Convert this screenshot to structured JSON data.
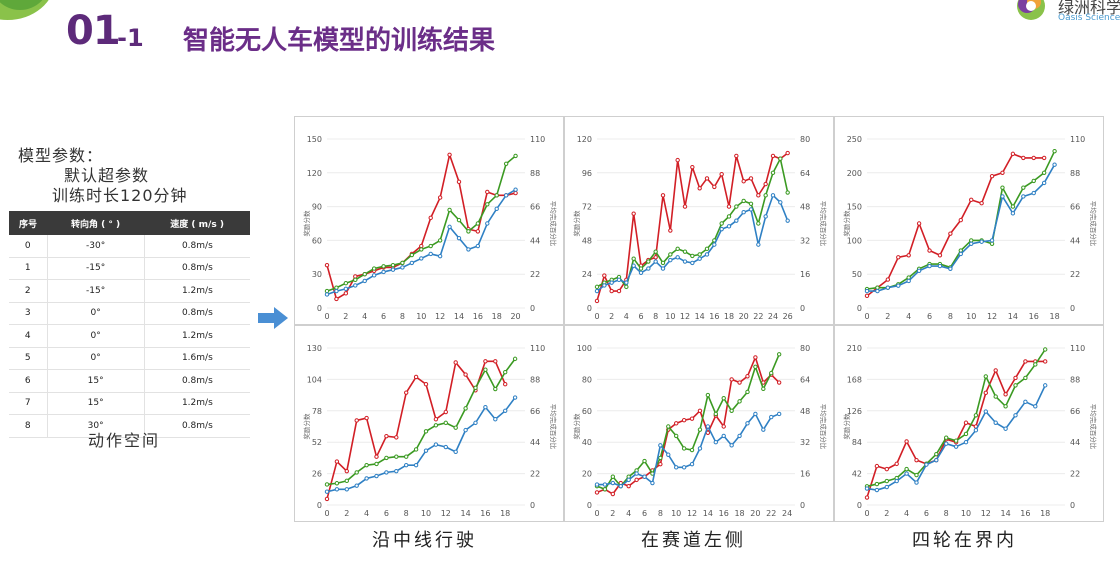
{
  "header": {
    "number": "01",
    "sub": "-1",
    "title": "智能无人车模型的训练结果"
  },
  "logo": {
    "cn": "绿洲科学",
    "en": "Oasis Science"
  },
  "params": {
    "heading": "模型参数：",
    "line1": "默认超参数",
    "line2": "训练时长120分钟"
  },
  "action_table": {
    "headers": [
      "序号",
      "转向角 ( ° )",
      "速度 ( m/s )"
    ],
    "rows": [
      [
        "0",
        "-30°",
        "0.8m/s"
      ],
      [
        "1",
        "-15°",
        "0.8m/s"
      ],
      [
        "2",
        "-15°",
        "1.2m/s"
      ],
      [
        "3",
        "0°",
        "0.8m/s"
      ],
      [
        "4",
        "0°",
        "1.2m/s"
      ],
      [
        "5",
        "0°",
        "1.6m/s"
      ],
      [
        "6",
        "15°",
        "0.8m/s"
      ],
      [
        "7",
        "15°",
        "1.2m/s"
      ],
      [
        "8",
        "30°",
        "0.8m/s"
      ]
    ]
  },
  "action_space_caption": "动作空间",
  "captions": [
    "沿中线行驶",
    "在赛道左侧",
    "四轮在界内"
  ],
  "colors": {
    "red": "#d21f26",
    "green": "#3b9a22",
    "blue": "#2f80c4",
    "title": "#5d2a7a",
    "arrow": "#4a8fd4"
  },
  "chart_data": [
    {
      "type": "line",
      "ylabel": "奖励分数",
      "y2label": "平均完成百分比",
      "xticks": [
        0,
        2,
        4,
        6,
        8,
        10,
        12,
        14,
        16,
        18,
        20
      ],
      "xmax": 21,
      "yticks": [
        0,
        30,
        60,
        90,
        120,
        150
      ],
      "ylim": [
        0,
        150
      ],
      "y2ticks": [
        0,
        22,
        44,
        66,
        88,
        110
      ],
      "series": [
        {
          "color": "red",
          "values": [
            38,
            8,
            13,
            28,
            30,
            33,
            36,
            36,
            40,
            48,
            55,
            80,
            98,
            136,
            112,
            70,
            68,
            103,
            100,
            100,
            102
          ]
        },
        {
          "color": "green",
          "values": [
            15,
            18,
            22,
            25,
            30,
            35,
            37,
            38,
            40,
            47,
            52,
            55,
            60,
            87,
            78,
            68,
            75,
            92,
            100,
            128,
            135
          ]
        },
        {
          "color": "blue",
          "values": [
            12,
            15,
            17,
            20,
            24,
            29,
            32,
            34,
            36,
            40,
            44,
            48,
            46,
            72,
            62,
            52,
            55,
            75,
            88,
            100,
            105
          ]
        }
      ]
    },
    {
      "type": "line",
      "ylabel": "奖励分数",
      "y2label": "平均完成百分比",
      "xticks": [
        0,
        2,
        4,
        6,
        8,
        10,
        12,
        14,
        16,
        18,
        20,
        22,
        24,
        26
      ],
      "xmax": 27,
      "yticks": [
        0,
        24,
        48,
        72,
        96,
        120
      ],
      "ylim": [
        0,
        120
      ],
      "y2ticks": [
        0,
        16,
        32,
        48,
        64,
        80
      ],
      "series": [
        {
          "color": "red",
          "values": [
            5,
            23,
            12,
            12,
            20,
            67,
            30,
            34,
            36,
            80,
            55,
            105,
            72,
            100,
            85,
            92,
            86,
            95,
            72,
            108,
            90,
            92,
            80,
            88,
            108,
            106,
            110
          ]
        },
        {
          "color": "green",
          "values": [
            15,
            18,
            20,
            22,
            15,
            35,
            28,
            33,
            40,
            32,
            38,
            42,
            40,
            37,
            38,
            42,
            48,
            60,
            65,
            72,
            76,
            74,
            60,
            80,
            96,
            106,
            82
          ]
        },
        {
          "color": "blue",
          "values": [
            12,
            16,
            18,
            20,
            18,
            30,
            25,
            28,
            33,
            28,
            34,
            36,
            33,
            32,
            35,
            38,
            45,
            56,
            58,
            62,
            68,
            70,
            45,
            65,
            80,
            75,
            62
          ]
        }
      ]
    },
    {
      "type": "line",
      "ylabel": "奖励分数",
      "y2label": "平均完成百分比",
      "xticks": [
        0,
        2,
        4,
        6,
        8,
        10,
        12,
        14,
        16,
        18
      ],
      "xmax": 19,
      "yticks": [
        0,
        50,
        100,
        150,
        200,
        250
      ],
      "ylim": [
        0,
        250
      ],
      "y2ticks": [
        0,
        22,
        44,
        66,
        88,
        110
      ],
      "series": [
        {
          "color": "red",
          "values": [
            18,
            30,
            42,
            75,
            78,
            125,
            85,
            78,
            110,
            130,
            160,
            155,
            195,
            200,
            228,
            222,
            222,
            222
          ]
        },
        {
          "color": "green",
          "values": [
            28,
            30,
            30,
            35,
            45,
            58,
            65,
            65,
            60,
            85,
            100,
            100,
            95,
            178,
            150,
            178,
            188,
            200,
            232
          ]
        },
        {
          "color": "blue",
          "values": [
            25,
            25,
            30,
            33,
            40,
            55,
            62,
            62,
            58,
            80,
            95,
            98,
            100,
            165,
            140,
            165,
            170,
            185,
            212
          ]
        }
      ]
    },
    {
      "type": "line",
      "ylabel": "奖励分数",
      "y2label": "平均完成百分比",
      "xticks": [
        0,
        2,
        4,
        6,
        8,
        10,
        12,
        14,
        16,
        18
      ],
      "xmax": 20,
      "yticks": [
        0,
        26,
        52,
        78,
        104,
        130
      ],
      "ylim": [
        0,
        130
      ],
      "y2ticks": [
        0,
        22,
        44,
        66,
        88,
        110
      ],
      "series": [
        {
          "color": "red",
          "values": [
            5,
            36,
            28,
            70,
            72,
            40,
            57,
            56,
            93,
            106,
            100,
            71,
            77,
            118,
            108,
            95,
            119,
            119,
            100
          ]
        },
        {
          "color": "green",
          "values": [
            17,
            18,
            20,
            27,
            33,
            34,
            39,
            40,
            40,
            46,
            61,
            66,
            68,
            64,
            80,
            97,
            112,
            96,
            110,
            121
          ]
        },
        {
          "color": "blue",
          "values": [
            11,
            13,
            13,
            16,
            22,
            24,
            27,
            28,
            33,
            33,
            45,
            50,
            48,
            44,
            62,
            68,
            81,
            71,
            78,
            89
          ]
        }
      ]
    },
    {
      "type": "line",
      "ylabel": "奖励分数",
      "y2label": "平均完成百分比",
      "xticks": [
        0,
        2,
        4,
        6,
        8,
        10,
        12,
        14,
        16,
        18,
        20,
        22,
        24
      ],
      "xmax": 25,
      "yticks": [
        0,
        20,
        40,
        60,
        80,
        100
      ],
      "ylim": [
        0,
        100
      ],
      "y2ticks": [
        0,
        16,
        32,
        48,
        64,
        80
      ],
      "series": [
        {
          "color": "red",
          "values": [
            8,
            10,
            7,
            14,
            12,
            16,
            18,
            22,
            26,
            48,
            52,
            54,
            55,
            60,
            46,
            57,
            50,
            80,
            78,
            82,
            94,
            78,
            83,
            78
          ]
        },
        {
          "color": "green",
          "values": [
            12,
            10,
            18,
            12,
            18,
            22,
            28,
            20,
            30,
            50,
            44,
            36,
            35,
            48,
            70,
            58,
            68,
            60,
            66,
            72,
            88,
            74,
            84,
            96
          ]
        },
        {
          "color": "blue",
          "values": [
            13,
            13,
            14,
            12,
            16,
            20,
            18,
            14,
            38,
            32,
            24,
            24,
            26,
            36,
            50,
            40,
            44,
            38,
            44,
            52,
            58,
            48,
            56,
            58
          ]
        }
      ]
    },
    {
      "type": "line",
      "ylabel": "奖励分数",
      "y2label": "平均完成百分比",
      "xticks": [
        0,
        2,
        4,
        6,
        8,
        10,
        12,
        14,
        16,
        18
      ],
      "xmax": 20,
      "yticks": [
        0,
        42,
        84,
        126,
        168,
        210
      ],
      "ylim": [
        0,
        210
      ],
      "y2ticks": [
        0,
        22,
        44,
        66,
        88,
        110
      ],
      "series": [
        {
          "color": "red",
          "values": [
            10,
            52,
            48,
            55,
            85,
            60,
            55,
            60,
            88,
            84,
            110,
            105,
            150,
            180,
            148,
            170,
            192,
            192,
            192
          ]
        },
        {
          "color": "green",
          "values": [
            25,
            28,
            32,
            36,
            48,
            40,
            55,
            68,
            90,
            86,
            95,
            120,
            172,
            145,
            132,
            160,
            170,
            188,
            208
          ]
        },
        {
          "color": "blue",
          "values": [
            22,
            20,
            24,
            32,
            42,
            30,
            54,
            60,
            82,
            78,
            84,
            100,
            125,
            110,
            102,
            120,
            138,
            132,
            160
          ]
        }
      ]
    }
  ]
}
